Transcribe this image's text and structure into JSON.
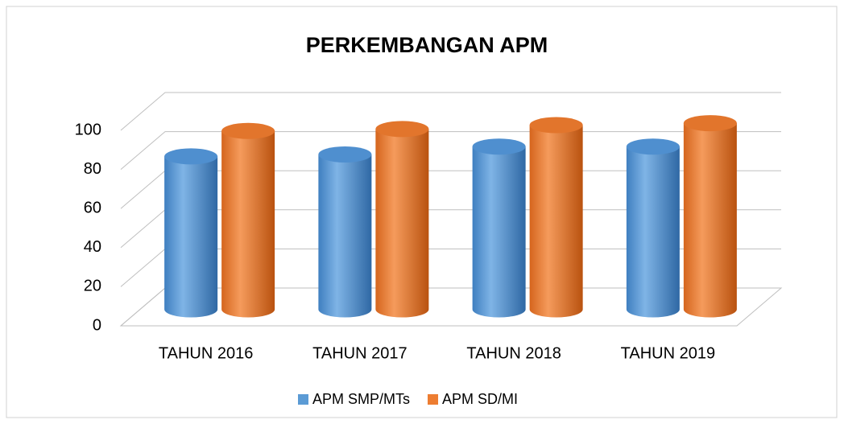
{
  "chart_data": {
    "type": "bar3d",
    "title": "PERKEMBANGAN APM",
    "categories": [
      "TAHUN 2016",
      "TAHUN 2017",
      "TAHUN 2018",
      "TAHUN 2019"
    ],
    "series": [
      {
        "name": "APM SMP/MTs",
        "color": "#5b9bd5",
        "values": [
          77,
          78,
          82,
          82
        ]
      },
      {
        "name": "APM SD/MI",
        "color": "#ed7d31",
        "values": [
          90,
          91,
          93,
          94
        ]
      }
    ],
    "ylim": [
      0,
      100
    ],
    "yticks": [
      0,
      20,
      40,
      60,
      80,
      100
    ],
    "grid": true,
    "legend": "bottom"
  }
}
